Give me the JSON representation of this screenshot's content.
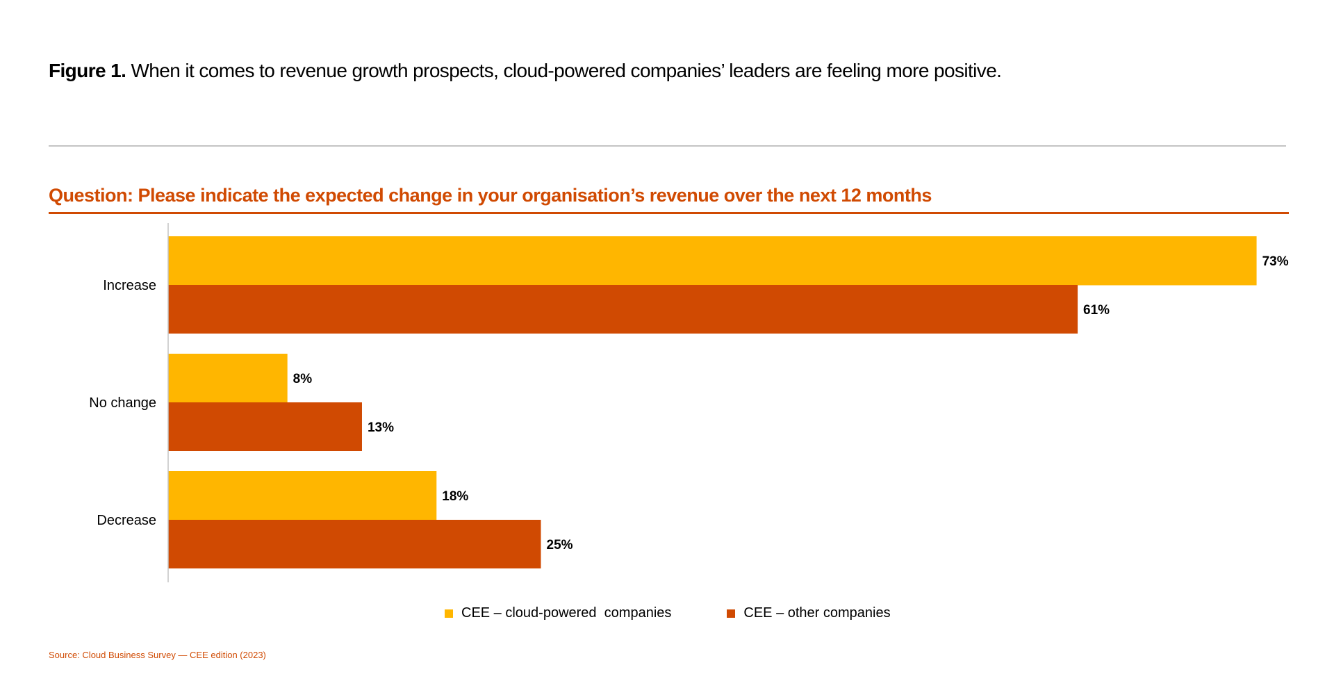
{
  "figure": {
    "label": "Figure 1.",
    "title": " When it comes to revenue growth prospects, cloud-powered companies’ leaders are feeling more positive."
  },
  "question": "Question: Please indicate the expected change in your organisation’s revenue over the next 12 months",
  "colors": {
    "accent": "#D04A02",
    "series1": "#FFB600",
    "series2": "#D04A02",
    "axis": "#c4c4c4",
    "text": "#000000"
  },
  "chart_data": {
    "type": "bar",
    "orientation": "horizontal",
    "title": "Question: Please indicate the expected change in your organisation’s revenue over the next 12 months",
    "xlabel": "",
    "ylabel": "",
    "categories": [
      "Increase",
      "No change",
      "Decrease"
    ],
    "series": [
      {
        "name": "CEE – cloud-powered  companies",
        "values": [
          73,
          8,
          18
        ],
        "color": "#FFB600"
      },
      {
        "name": "CEE – other companies",
        "values": [
          61,
          13,
          25
        ],
        "color": "#D04A02"
      }
    ],
    "value_suffix": "%",
    "xlim": [
      0,
      80
    ],
    "grid": false,
    "legend_position": "bottom-center",
    "data_labels": true
  },
  "legend": [
    {
      "label": "CEE – cloud-powered  companies",
      "color": "#FFB600"
    },
    {
      "label": "CEE – other companies",
      "color": "#D04A02"
    }
  ],
  "source": "Source: Cloud Business Survey — CEE edition (2023)"
}
